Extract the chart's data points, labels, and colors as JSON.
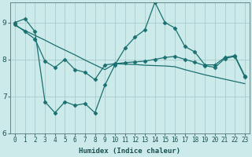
{
  "xlabel": "Humidex (Indice chaleur)",
  "bg_color": "#cdeaea",
  "line_color": "#1a7070",
  "grid_color": "#a8cccc",
  "xlim": [
    -0.5,
    23.5
  ],
  "ylim": [
    6,
    9.55
  ],
  "yticks": [
    6,
    7,
    8,
    9
  ],
  "xticks": [
    0,
    1,
    2,
    3,
    4,
    5,
    6,
    7,
    8,
    9,
    10,
    11,
    12,
    13,
    14,
    15,
    16,
    17,
    18,
    19,
    20,
    21,
    22,
    23
  ],
  "line1_x": [
    0,
    1,
    2,
    3,
    4,
    5,
    6,
    7,
    8,
    9,
    10,
    11,
    12,
    13,
    14,
    15,
    16,
    17,
    18,
    19,
    20,
    21,
    22,
    23
  ],
  "line1_y": [
    9.0,
    9.1,
    8.75,
    6.85,
    6.55,
    6.85,
    6.75,
    6.8,
    6.55,
    7.3,
    7.85,
    8.3,
    8.6,
    8.8,
    9.55,
    9.0,
    8.85,
    8.35,
    8.2,
    7.85,
    7.85,
    8.05,
    8.1,
    7.55
  ],
  "line2_x": [
    0,
    1,
    2,
    3,
    4,
    5,
    6,
    7,
    8,
    9,
    10,
    11,
    12,
    13,
    14,
    15,
    16,
    17,
    18,
    19,
    20,
    21,
    22,
    23
  ],
  "line2_y": [
    8.92,
    8.78,
    8.65,
    8.52,
    8.38,
    8.25,
    8.12,
    7.98,
    7.85,
    7.72,
    7.88,
    7.87,
    7.86,
    7.84,
    7.83,
    7.82,
    7.8,
    7.72,
    7.65,
    7.58,
    7.52,
    7.46,
    7.4,
    7.34
  ],
  "line3_x": [
    0,
    1,
    2,
    3,
    4,
    5,
    6,
    7,
    8,
    9,
    10,
    11,
    12,
    13,
    14,
    15,
    16,
    17,
    18,
    19,
    20,
    21,
    22,
    23
  ],
  "line3_y": [
    8.95,
    8.75,
    8.55,
    7.95,
    7.78,
    8.0,
    7.72,
    7.65,
    7.45,
    7.85,
    7.88,
    7.91,
    7.93,
    7.95,
    8.0,
    8.05,
    8.08,
    8.0,
    7.92,
    7.83,
    7.78,
    8.02,
    8.08,
    7.52
  ],
  "marker": "D",
  "markersize": 2.5,
  "linewidth": 0.9,
  "tick_fontsize": 5.5,
  "xlabel_fontsize": 6.5
}
